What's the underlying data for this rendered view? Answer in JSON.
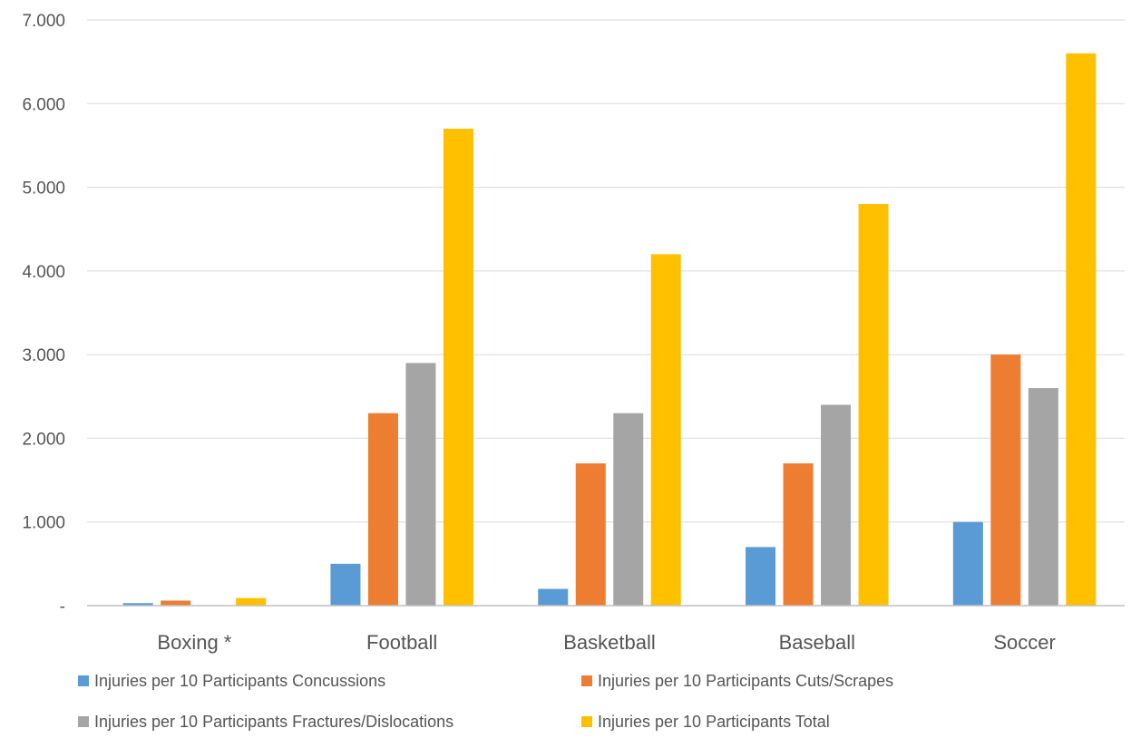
{
  "chart_data": {
    "type": "bar",
    "categories": [
      "Boxing *",
      "Football",
      "Basketball",
      "Baseball",
      "Soccer"
    ],
    "series": [
      {
        "name": "Injuries per 10 Participants Concussions",
        "color": "#5b9bd5",
        "values": [
          0.03,
          0.5,
          0.2,
          0.7,
          1.0
        ]
      },
      {
        "name": "Injuries per 10 Participants Cuts/Scrapes",
        "color": "#ed7d31",
        "values": [
          0.06,
          2.3,
          1.7,
          1.7,
          3.0
        ]
      },
      {
        "name": "Injuries per 10 Participants Fractures/Dislocations",
        "color": "#a5a5a5",
        "values": [
          0.0,
          2.9,
          2.3,
          2.4,
          2.6
        ]
      },
      {
        "name": "Injuries per 10 Participants Total",
        "color": "#ffc000",
        "values": [
          0.09,
          5.7,
          4.2,
          4.8,
          6.6
        ]
      }
    ],
    "ylim": [
      0,
      7
    ],
    "yticks": [
      0,
      1,
      2,
      3,
      4,
      5,
      6,
      7
    ],
    "ytick_labels": [
      "-",
      "1.000",
      "2.000",
      "3.000",
      "4.000",
      "5.000",
      "6.000",
      "7.000"
    ],
    "grid": true,
    "legend_position": "bottom",
    "title": "",
    "xlabel": "",
    "ylabel": ""
  }
}
